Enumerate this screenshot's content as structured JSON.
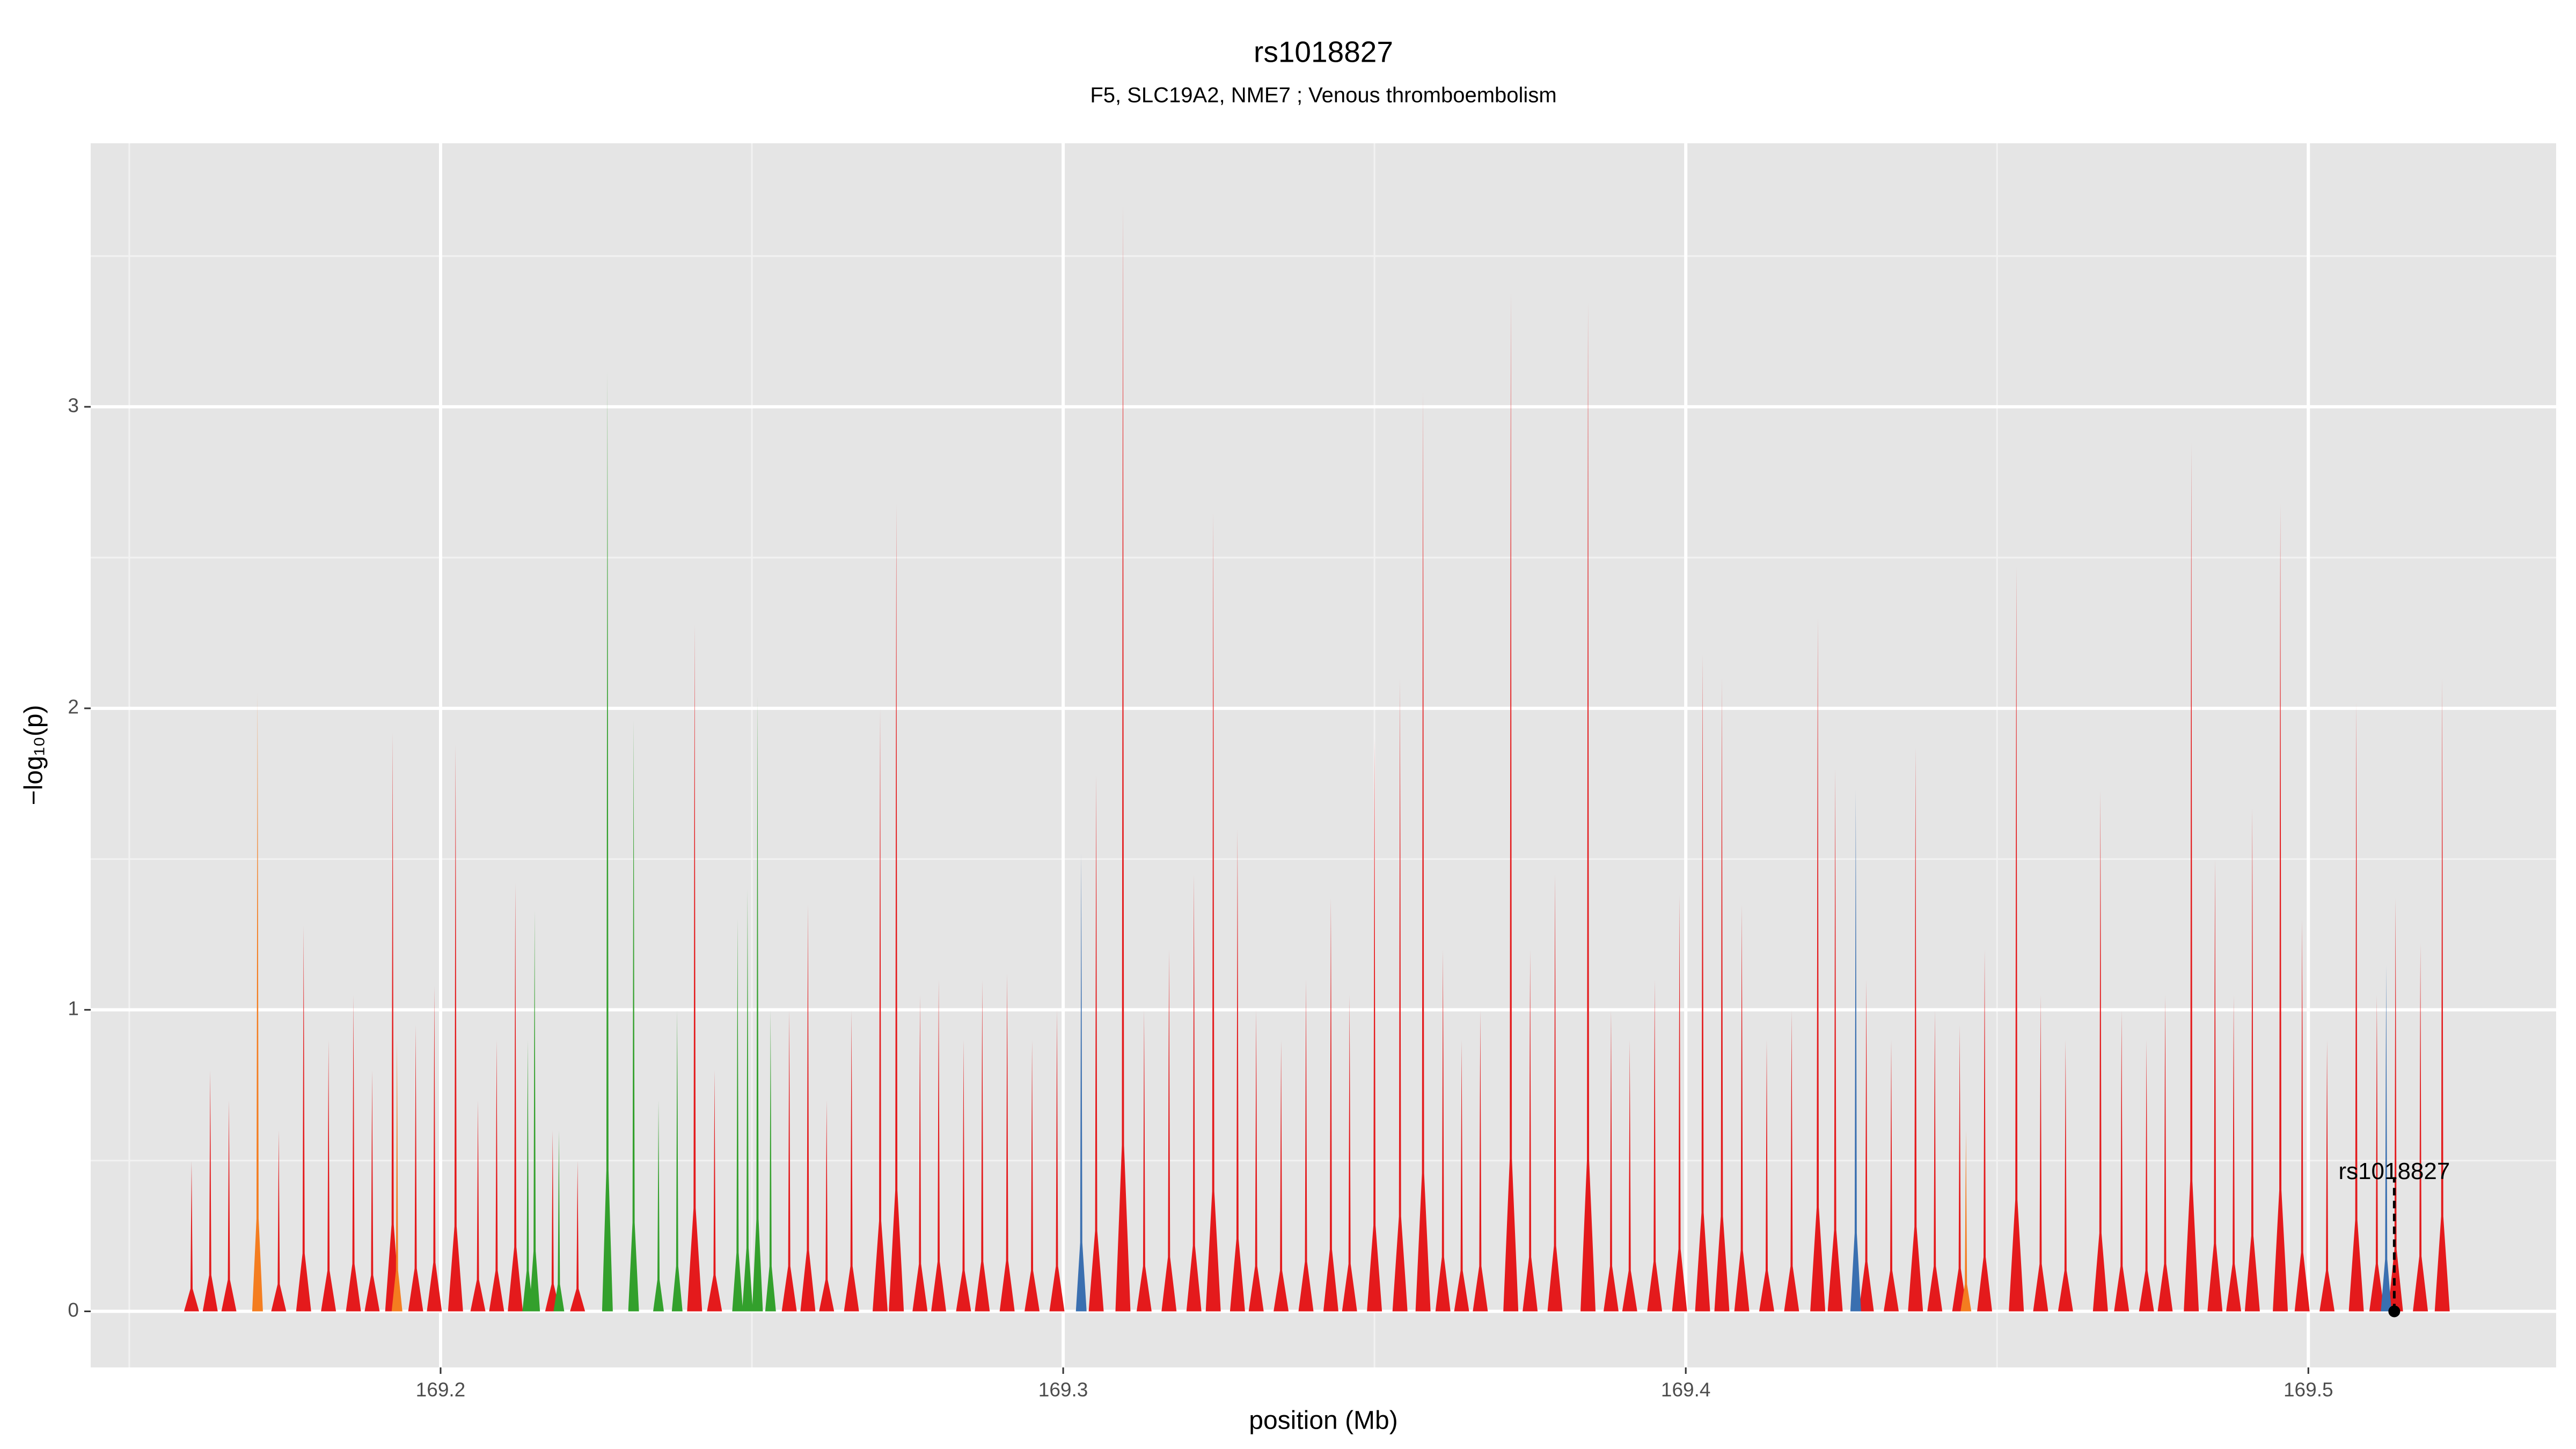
{
  "chart_data": {
    "type": "spike",
    "title": "rs1018827",
    "subtitle": "F5, SLC19A2, NME7 ; Venous thromboembolism",
    "x_label": "position (Mb)",
    "y_label": "−log₁₀(p)",
    "xlim": [
      169.1438,
      169.5398
    ],
    "ylim": [
      -0.186,
      3.874
    ],
    "xticks": [
      169.2,
      169.3,
      169.4,
      169.5
    ],
    "yticks": [
      0,
      1,
      2,
      3
    ],
    "grid": true,
    "series": [
      {
        "color": "#e41a1c",
        "x": [
          169.16,
          169.163,
          169.166,
          169.174,
          169.178,
          169.182,
          169.186,
          169.189,
          169.1923,
          169.196,
          169.199,
          169.2024,
          169.206,
          169.209,
          169.212,
          169.218,
          169.222,
          169.2408,
          169.244,
          169.256,
          169.259,
          169.262,
          169.266,
          169.2706,
          169.2732,
          169.277,
          169.28,
          169.284,
          169.287,
          169.291,
          169.295,
          169.299,
          169.3053,
          169.3096,
          169.313,
          169.317,
          169.321,
          169.3241,
          169.328,
          169.331,
          169.335,
          169.339,
          169.343,
          169.346,
          169.35,
          169.3541,
          169.3578,
          169.361,
          169.364,
          169.367,
          169.3719,
          169.375,
          169.379,
          169.3843,
          169.388,
          169.391,
          169.395,
          169.399,
          169.4027,
          169.4058,
          169.409,
          169.413,
          169.417,
          169.4212,
          169.424,
          169.429,
          169.433,
          169.4369,
          169.44,
          169.444,
          169.448,
          169.4531,
          169.457,
          169.461,
          169.4666,
          169.47,
          169.474,
          169.477,
          169.4812,
          169.485,
          169.488,
          169.491,
          169.4955,
          169.499,
          169.503,
          169.5077,
          169.511,
          169.514,
          169.518,
          169.5215
        ],
        "values": [
          0.5,
          0.8,
          0.7,
          0.6,
          1.28,
          0.9,
          1.05,
          0.8,
          1.92,
          0.95,
          1.08,
          1.88,
          0.7,
          0.9,
          1.42,
          0.6,
          0.5,
          2.28,
          0.8,
          1.0,
          1.35,
          0.7,
          1.0,
          2.0,
          2.68,
          1.05,
          1.1,
          0.9,
          1.1,
          1.12,
          0.9,
          1.0,
          1.78,
          3.67,
          1.0,
          1.2,
          1.45,
          2.65,
          1.6,
          1.0,
          0.9,
          1.1,
          1.37,
          1.05,
          1.9,
          2.1,
          3.05,
          1.2,
          0.9,
          1.0,
          3.38,
          1.2,
          1.45,
          3.35,
          1.0,
          0.9,
          1.1,
          1.38,
          2.18,
          2.1,
          1.35,
          0.9,
          1.0,
          2.3,
          1.8,
          1.1,
          0.9,
          1.87,
          1.0,
          0.95,
          1.2,
          2.47,
          1.05,
          0.9,
          1.73,
          1.0,
          0.9,
          1.05,
          2.88,
          1.5,
          1.05,
          1.67,
          2.68,
          1.3,
          0.9,
          2.02,
          1.05,
          1.37,
          1.22,
          2.1
        ]
      },
      {
        "color": "#33a02c",
        "x": [
          169.214,
          169.2151,
          169.219,
          169.2268,
          169.231,
          169.235,
          169.238,
          169.2477,
          169.2493,
          169.2509,
          169.253
        ],
        "values": [
          0.9,
          1.33,
          0.6,
          3.12,
          1.96,
          0.7,
          1.0,
          1.3,
          1.4,
          2.04,
          1.0
        ]
      },
      {
        "color": "#f47d20",
        "x": [
          169.1706,
          169.193,
          169.445
        ],
        "values": [
          2.05,
          0.9,
          0.6
        ]
      },
      {
        "color": "#3a6fb0",
        "x": [
          169.3029,
          169.4273,
          169.5125
        ],
        "values": [
          1.52,
          1.73,
          1.15
        ]
      }
    ],
    "annotation": {
      "text": "rs1018827",
      "x": 169.5138,
      "y": 0
    }
  }
}
